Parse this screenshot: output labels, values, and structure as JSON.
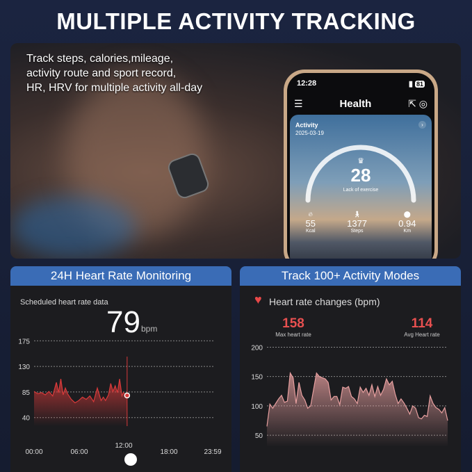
{
  "title": "MULTIPLE ACTIVITY TRACKING",
  "tagline": [
    "Track steps, calories,mileage,",
    "activity route and sport record,",
    "HR, HRV  for multiple activity all-day"
  ],
  "phone": {
    "time": "12:28",
    "battery": "81",
    "header": "Health",
    "activity_label": "Activity",
    "date": "2025-03-19",
    "score": "28",
    "score_label": "Lack of exercise",
    "stats": [
      {
        "value": "55",
        "label": "Kcal",
        "icon": "flame-icon"
      },
      {
        "value": "1377",
        "label": "Steps",
        "icon": "walk-icon"
      },
      {
        "value": "0.94",
        "label": "Km",
        "icon": "location-pin-icon"
      }
    ]
  },
  "left_panel": {
    "header": "24H Heart Rate Monitoring",
    "subtitle": "Scheduled heart rate data",
    "value": "79",
    "unit": "bpm"
  },
  "right_panel": {
    "header": "Track 100+ Activity Modes",
    "subtitle": "Heart rate changes (bpm)",
    "max_value": "158",
    "max_label": "Max heart rate",
    "avg_value": "114",
    "avg_label": "Avg Heart rate"
  },
  "chart_data": [
    {
      "type": "area",
      "yticks": [
        175,
        130,
        85,
        40
      ],
      "xticks": [
        "00:00",
        "06:00",
        "12:00",
        "18:00",
        "23:59"
      ],
      "x_hours": [
        0,
        0.5,
        1,
        1.5,
        2,
        2.5,
        3,
        3.3,
        3.6,
        3.9,
        4.2,
        4.5,
        5,
        5.5,
        6,
        6.5,
        7,
        7.5,
        8,
        8.5,
        9,
        9.3,
        9.6,
        10,
        10.3,
        10.6,
        10.9,
        11.2,
        11.5,
        11.8,
        12,
        12.3,
        12.5
      ],
      "values": [
        86,
        82,
        84,
        80,
        86,
        78,
        102,
        84,
        108,
        80,
        92,
        82,
        72,
        66,
        70,
        76,
        72,
        78,
        68,
        92,
        70,
        76,
        70,
        80,
        100,
        86,
        96,
        84,
        108,
        78,
        84,
        80,
        79
      ],
      "ylim": [
        25,
        190
      ],
      "color": "#d83a3a",
      "grid": true
    },
    {
      "type": "area",
      "yticks": [
        200,
        150,
        100,
        50
      ],
      "values": [
        65,
        103,
        96,
        104,
        112,
        118,
        106,
        108,
        156,
        148,
        104,
        140,
        118,
        110,
        96,
        100,
        128,
        156,
        150,
        148,
        146,
        140,
        110,
        116,
        116,
        102,
        132,
        130,
        133,
        116,
        112,
        104,
        132,
        123,
        130,
        118,
        136,
        116,
        133,
        118,
        128,
        146,
        136,
        142,
        120,
        104,
        112,
        105,
        96,
        86,
        100,
        96,
        80,
        78,
        84,
        82,
        117,
        104,
        97,
        94,
        88,
        97,
        75
      ],
      "ylim": [
        30,
        210
      ],
      "color": "#e8a0a0",
      "grid": true
    }
  ]
}
